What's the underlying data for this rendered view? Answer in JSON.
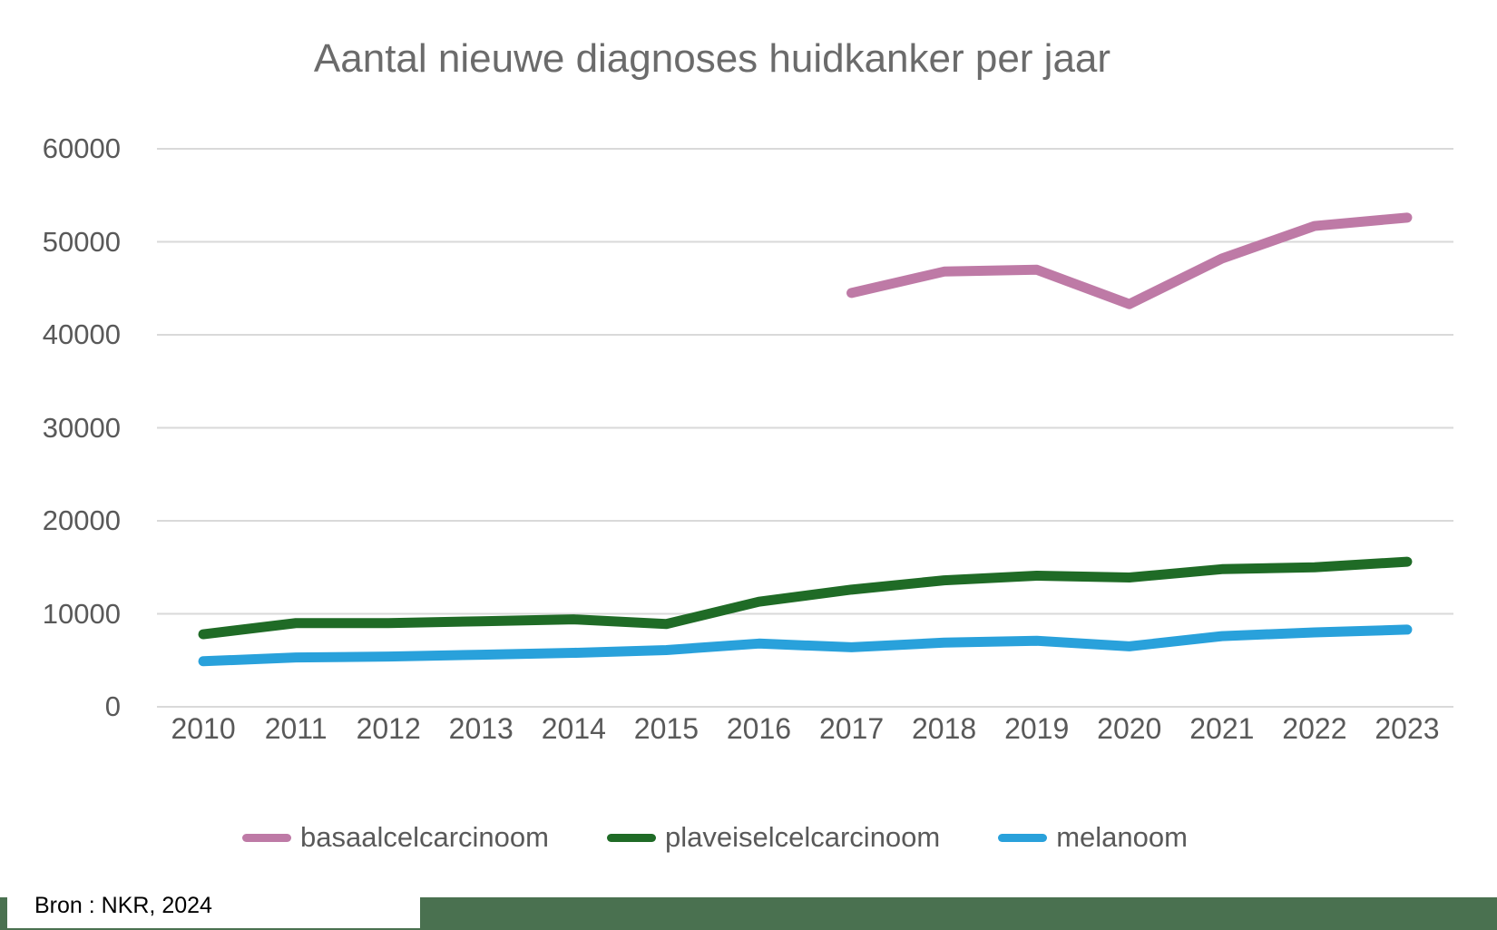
{
  "title": "Aantal nieuwe diagnoses huidkanker per jaar",
  "source": "Bron : NKR, 2024",
  "colors": {
    "basaalcelcarcinoom": "#be7aa6",
    "plaveiselcelcarcinoom": "#1f6b26",
    "melanoom": "#29a1db",
    "grid": "#d9d9d9",
    "axis_text": "#595959",
    "title_text": "#6b6b6b",
    "footer_bar": "#4a7150"
  },
  "chart_data": {
    "type": "line",
    "title": "Aantal nieuwe diagnoses huidkanker per jaar",
    "x": [
      2010,
      2011,
      2012,
      2013,
      2014,
      2015,
      2016,
      2017,
      2018,
      2019,
      2020,
      2021,
      2022,
      2023
    ],
    "series": [
      {
        "name": "basaalcelcarcinoom",
        "color": "#be7aa6",
        "values": [
          null,
          null,
          null,
          null,
          null,
          null,
          null,
          44500,
          46800,
          47000,
          43300,
          48200,
          51700,
          52600
        ]
      },
      {
        "name": "plaveiselcelcarcinoom",
        "color": "#1f6b26",
        "values": [
          7800,
          9000,
          9000,
          9200,
          9400,
          8900,
          11300,
          12600,
          13600,
          14100,
          13900,
          14800,
          15000,
          15600
        ]
      },
      {
        "name": "melanoom",
        "color": "#29a1db",
        "values": [
          4900,
          5300,
          5400,
          5600,
          5800,
          6100,
          6800,
          6400,
          6900,
          7100,
          6500,
          7600,
          8000,
          8300
        ]
      }
    ],
    "ylim": [
      0,
      60000
    ],
    "yticks": [
      0,
      10000,
      20000,
      30000,
      40000,
      50000,
      60000
    ],
    "grid": "horizontal",
    "legend_position": "bottom",
    "source_note": "Bron : NKR, 2024"
  }
}
